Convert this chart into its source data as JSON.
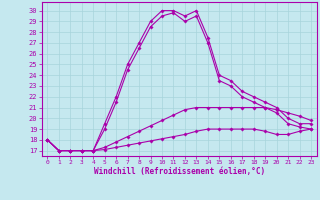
{
  "xlabel": "Windchill (Refroidissement éolien,°C)",
  "bg_color": "#c5e8ef",
  "grid_color": "#a8d4dc",
  "line_color": "#aa00aa",
  "xlim": [
    -0.5,
    23.5
  ],
  "ylim": [
    16.5,
    30.8
  ],
  "xticks": [
    0,
    1,
    2,
    3,
    4,
    5,
    6,
    7,
    8,
    9,
    10,
    11,
    12,
    13,
    14,
    15,
    16,
    17,
    18,
    19,
    20,
    21,
    22,
    23
  ],
  "yticks": [
    17,
    18,
    19,
    20,
    21,
    22,
    23,
    24,
    25,
    26,
    27,
    28,
    29,
    30
  ],
  "s1": [
    18,
    17,
    17,
    17,
    17,
    19.5,
    22,
    25,
    27,
    29,
    30,
    30,
    29.5,
    30,
    27.5,
    24,
    23.5,
    22.5,
    22,
    21.5,
    21,
    20,
    19.5,
    19.5
  ],
  "s2": [
    18,
    17,
    17,
    17,
    17,
    19.0,
    21.5,
    24.5,
    26.5,
    28.5,
    29.5,
    29.8,
    29.0,
    29.5,
    27.0,
    23.5,
    23.0,
    22.0,
    21.5,
    21.0,
    20.5,
    19.5,
    19.2,
    19.0
  ],
  "s3": [
    18,
    17,
    17,
    17,
    17,
    17.3,
    17.8,
    18.3,
    18.8,
    19.3,
    19.8,
    20.3,
    20.8,
    21.0,
    21.0,
    21.0,
    21.0,
    21.0,
    21.0,
    21.0,
    20.8,
    20.5,
    20.2,
    19.8
  ],
  "s4": [
    18,
    17,
    17,
    17,
    17,
    17.1,
    17.3,
    17.5,
    17.7,
    17.9,
    18.1,
    18.3,
    18.5,
    18.8,
    19.0,
    19.0,
    19.0,
    19.0,
    19.0,
    18.8,
    18.5,
    18.5,
    18.8,
    19.0
  ]
}
